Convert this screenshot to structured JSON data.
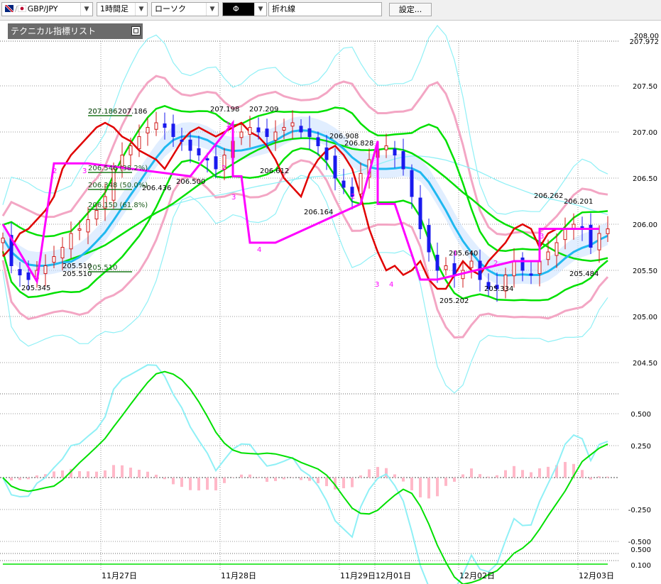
{
  "toolbar": {
    "symbol": "GBP/JPY",
    "timeframe": "1時間足",
    "chart_type": "ローソク",
    "color_box": "Φ",
    "line_type": "折れ線",
    "settings_label": "設定..."
  },
  "indicator_panel": {
    "title": "テクニカル指標リスト"
  },
  "colors": {
    "bull": "#d01818",
    "bear": "#1a1aee",
    "sma": "#00e000",
    "ema": "#20b8f0",
    "bb2": "#f3a6c4",
    "bb3": "#8ff0f6",
    "chikou": "#e00000",
    "zigzag": "#ff00ff",
    "kumo_pink": "#ffc8dc",
    "kumo_blue": "#c8e0ff",
    "hist": "#ffb8c8"
  },
  "chart_data": {
    "type": "line",
    "price_axis": {
      "ticks": [
        "207.50",
        "207.00",
        "206.50",
        "206.00",
        "205.50",
        "205.00",
        "204.50"
      ],
      "top_labels": [
        "208.00",
        "207.972"
      ]
    },
    "osc_axis": {
      "ticks": [
        "0.500",
        "0.250",
        "-0.250",
        "-0.500"
      ]
    },
    "sub_axis": {
      "ticks": [
        "0.500",
        "0.100"
      ]
    },
    "date_labels": [
      "11月27日",
      "11月28日",
      "11月29日",
      "12月01日",
      "12月02日",
      "12月03日"
    ],
    "price_labels": [
      "207.186",
      "207.186",
      "207.198",
      "207.209",
      "206.908",
      "206.828",
      "206.612",
      "206.500",
      "206.164",
      "205.640",
      "205.334",
      "205.202",
      "206.262",
      "206.201",
      "205.484",
      "205.345",
      "205.510",
      "205.510",
      "206.436"
    ],
    "fib_labels": [
      "207.186",
      "206.546 (38.2%)",
      "206.348 (50.0%)",
      "206.150 (61.8%)",
      "205.510"
    ],
    "zigzag_wave_labels": [
      "2",
      "3",
      "1",
      "2",
      "3",
      "4",
      "2",
      "3",
      "4",
      "1",
      "2",
      "3"
    ],
    "zigzag": [
      [
        0,
        206.0
      ],
      [
        0,
        206.0
      ],
      [
        4,
        205.38
      ],
      [
        6,
        206.66
      ],
      [
        10,
        206.66
      ],
      [
        22,
        206.52
      ],
      [
        27,
        207.1
      ],
      [
        27,
        206.52
      ],
      [
        28,
        206.52
      ],
      [
        29,
        205.8
      ],
      [
        32,
        205.8
      ],
      [
        42,
        206.22
      ],
      [
        44,
        206.9
      ],
      [
        44,
        206.22
      ],
      [
        46,
        206.22
      ],
      [
        49,
        205.4
      ],
      [
        51,
        205.4
      ],
      [
        60,
        205.6
      ],
      [
        63,
        205.6
      ],
      [
        63,
        205.95
      ],
      [
        70,
        205.95
      ]
    ]
  }
}
